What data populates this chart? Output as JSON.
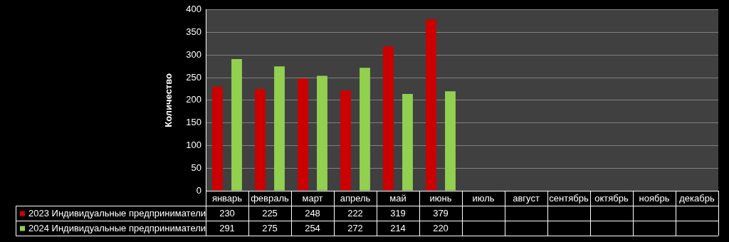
{
  "chart_data": {
    "type": "bar",
    "ylabel": "Количество",
    "categories": [
      "январь",
      "февраль",
      "март",
      "апрель",
      "май",
      "июнь",
      "июль",
      "август",
      "сентябрь",
      "октябрь",
      "ноябрь",
      "декабрь"
    ],
    "series": [
      {
        "name": "2023 Индивидуальные предприниматели",
        "color": "#cc0000",
        "values": [
          230,
          225,
          248,
          222,
          319,
          379,
          null,
          null,
          null,
          null,
          null,
          null
        ]
      },
      {
        "name": "2024 Индивидуальные предприниматели",
        "color": "#92d050",
        "values": [
          291,
          275,
          254,
          272,
          214,
          220,
          null,
          null,
          null,
          null,
          null,
          null
        ]
      }
    ],
    "ylim": [
      0,
      400
    ],
    "yticks": [
      0,
      50,
      100,
      150,
      200,
      250,
      300,
      350,
      400
    ],
    "grid": "y",
    "legend": "bottom",
    "data_labels": true
  }
}
